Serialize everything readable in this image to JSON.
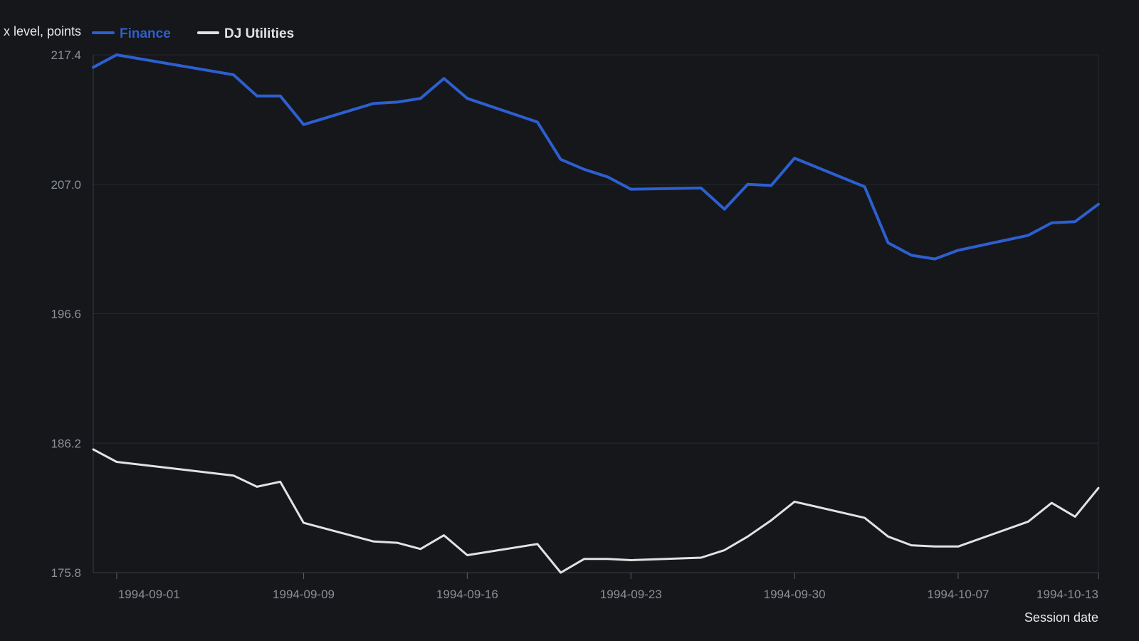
{
  "chart_data": {
    "type": "line",
    "ylabel": "x level, points",
    "xlabel": "Session date",
    "ylim": [
      175.8,
      217.4
    ],
    "yticks": [
      "217.4",
      "207.0",
      "196.6",
      "186.2",
      "175.8"
    ],
    "xticks": [
      "1994-09-01",
      "1994-09-09",
      "1994-09-16",
      "1994-09-23",
      "1994-09-30",
      "1994-10-07",
      "1994-10-13"
    ],
    "x": [
      "1994-08-31",
      "1994-09-01",
      "1994-09-06",
      "1994-09-07",
      "1994-09-08",
      "1994-09-09",
      "1994-09-12",
      "1994-09-13",
      "1994-09-14",
      "1994-09-15",
      "1994-09-16",
      "1994-09-19",
      "1994-09-20",
      "1994-09-21",
      "1994-09-22",
      "1994-09-23",
      "1994-09-26",
      "1994-09-27",
      "1994-09-28",
      "1994-09-29",
      "1994-09-30",
      "1994-10-03",
      "1994-10-04",
      "1994-10-05",
      "1994-10-06",
      "1994-10-07",
      "1994-10-10",
      "1994-10-11",
      "1994-10-12",
      "1994-10-13"
    ],
    "series": [
      {
        "name": "Finance",
        "color": "#2d5fd0",
        "values": [
          216.4,
          217.4,
          215.8,
          214.1,
          214.1,
          211.8,
          213.5,
          213.6,
          213.9,
          215.5,
          213.9,
          212.0,
          209.0,
          208.2,
          207.6,
          206.6,
          206.7,
          205.0,
          207.0,
          206.9,
          209.1,
          206.8,
          202.3,
          201.3,
          201.0,
          201.7,
          202.9,
          203.9,
          204.0,
          205.4
        ]
      },
      {
        "name": "DJ Utilities",
        "color": "#e2e2e2",
        "values": [
          185.7,
          184.7,
          183.6,
          182.7,
          183.1,
          179.8,
          178.3,
          178.2,
          177.7,
          178.8,
          177.2,
          178.1,
          175.8,
          176.9,
          176.9,
          176.8,
          177.0,
          177.6,
          178.7,
          180.0,
          181.5,
          180.2,
          178.7,
          178.0,
          177.9,
          177.9,
          179.9,
          181.4,
          180.3,
          182.6
        ]
      }
    ]
  }
}
